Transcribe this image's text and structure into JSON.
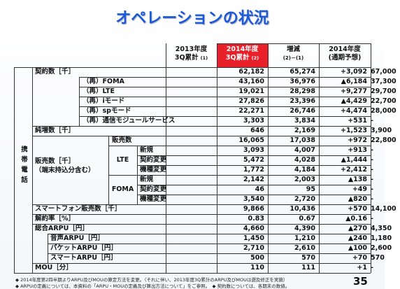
{
  "title": "オペレーションの状況",
  "header": [
    {
      "lines": [
        "2013年度",
        "3Q累計"
      ],
      "note": "(1)"
    },
    {
      "lines": [
        "2014年度",
        "3Q累計"
      ],
      "note": "(2)"
    },
    {
      "lines": [
        "増減"
      ],
      "note": "(2)－(1)"
    },
    {
      "lines": [
        "2014年度",
        "(通期予想)"
      ]
    }
  ],
  "side_label": "携帯電話",
  "sales_group": {
    "label": "販売数［千］",
    "note": "（端末持込分含む）"
  },
  "sub_groups": [
    "LTE",
    "FOMA"
  ],
  "table": {
    "rows": [
      {
        "label": "契約数［千］",
        "values": [
          "62,182",
          "65,274",
          "+3,092",
          "67,000"
        ]
      },
      {
        "label": "（再）FOMA",
        "values": [
          "43,160",
          "36,976",
          "▲6,184",
          "37,300"
        ]
      },
      {
        "label": "（再）LTE",
        "values": [
          "19,021",
          "28,298",
          "+9,277",
          "29,700"
        ]
      },
      {
        "label": "（再）iモード",
        "values": [
          "27,826",
          "23,396",
          "▲4,429",
          "22,700"
        ]
      },
      {
        "label": "（再）spモード",
        "values": [
          "22,271",
          "26,746",
          "+4,474",
          "28,000"
        ]
      },
      {
        "label": "（再）通信モジュールサービス",
        "values": [
          "3,303",
          "3,834",
          "+531",
          "-"
        ]
      },
      {
        "label": "純増数［千］",
        "values": [
          "646",
          "2,169",
          "+1,523",
          "3,900"
        ]
      },
      {
        "label": "販売数",
        "values": [
          "16,065",
          "17,038",
          "+972",
          "22,800"
        ]
      },
      {
        "label": "新規",
        "values": [
          "3,093",
          "4,007",
          "+913",
          "-"
        ]
      },
      {
        "label": "契約変更",
        "values": [
          "5,472",
          "4,028",
          "▲1,444",
          "-"
        ]
      },
      {
        "label": "機種変更",
        "values": [
          "1,772",
          "4,184",
          "+2,412",
          "-"
        ]
      },
      {
        "label": "新規",
        "values": [
          "2,142",
          "2,003",
          "▲138",
          "-"
        ]
      },
      {
        "label": "契約変更",
        "values": [
          "46",
          "95",
          "+49",
          "-"
        ]
      },
      {
        "label": "機種変更",
        "values": [
          "3,540",
          "2,720",
          "▲820",
          "-"
        ]
      },
      {
        "label": "スマートフォン販売数［千］",
        "values": [
          "9,866",
          "10,436",
          "+570",
          "14,100"
        ]
      },
      {
        "label": "解約率［%］",
        "values": [
          "0.83",
          "0.67",
          "▲0.16",
          "-"
        ]
      },
      {
        "label": "総合ARPU［円］",
        "values": [
          "4,660",
          "4,390",
          "▲270",
          "4,350"
        ]
      },
      {
        "label": "音声ARPU［円］",
        "values": [
          "1,450",
          "1,210",
          "▲240",
          "1,180"
        ]
      },
      {
        "label": "パケットARPU［円］",
        "values": [
          "2,710",
          "2,610",
          "▲100",
          "2,600"
        ]
      },
      {
        "label": "スマートARPU［円］",
        "values": [
          "500",
          "570",
          "+70",
          "570"
        ]
      },
      {
        "label": "MOU［分］",
        "values": [
          "110",
          "111",
          "+1",
          "-"
        ]
      }
    ]
  },
  "footnotes": [
    "◆ 2014年度第2四半期よりARPU及びMOUの算定方法を変更。（それに伴い、2013年度3Q累計のARPU及びMOUは遡及修正を実施）",
    "◆ ARPUの定義については、本資料の「ARPU・MOUの定義及び算出方法について」をご参照。　◆ 契約数については、各期末の数値。"
  ],
  "page_number": "35"
}
